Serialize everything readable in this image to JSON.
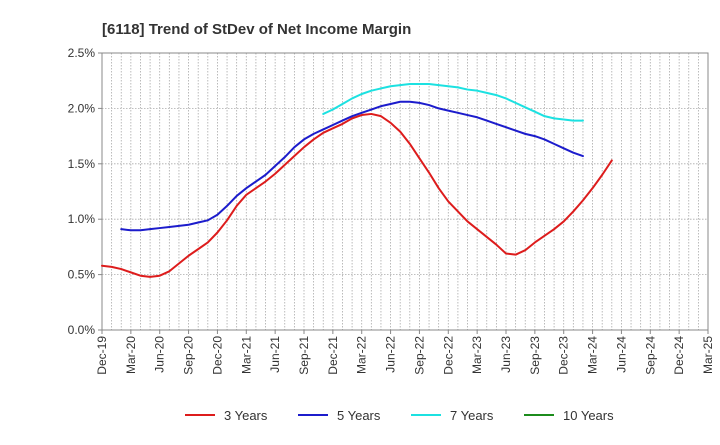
{
  "chart_data": {
    "type": "line",
    "title": "[6118]  Trend of StDev of Net Income Margin",
    "xlabel": "",
    "ylabel": "",
    "x_ticks": [
      "Dec-19",
      "Mar-20",
      "Jun-20",
      "Sep-20",
      "Dec-20",
      "Mar-21",
      "Jun-21",
      "Sep-21",
      "Dec-21",
      "Mar-22",
      "Jun-22",
      "Sep-22",
      "Dec-22",
      "Mar-23",
      "Jun-23",
      "Sep-23",
      "Dec-23",
      "Mar-24",
      "Jun-24",
      "Sep-24",
      "Dec-24",
      "Mar-25"
    ],
    "y_ticks": [
      "0.0%",
      "0.5%",
      "1.0%",
      "1.5%",
      "2.0%",
      "2.5%"
    ],
    "ylim": [
      0,
      2.5
    ],
    "y_unit": "%",
    "grid": true,
    "legend_position": "bottom",
    "series": [
      {
        "name": "3 Years",
        "color": "#dd1c1c",
        "start_index": 0,
        "values": [
          0.58,
          0.57,
          0.55,
          0.52,
          0.49,
          0.48,
          0.49,
          0.53,
          0.6,
          0.67,
          0.73,
          0.79,
          0.88,
          0.99,
          1.12,
          1.22,
          1.28,
          1.34,
          1.41,
          1.49,
          1.57,
          1.65,
          1.72,
          1.78,
          1.82,
          1.86,
          1.91,
          1.94,
          1.95,
          1.93,
          1.87,
          1.79,
          1.68,
          1.55,
          1.42,
          1.28,
          1.16,
          1.07,
          0.98,
          0.91,
          0.84,
          0.77,
          0.69,
          0.68,
          0.72,
          0.79,
          0.85,
          0.91,
          0.98,
          1.07,
          1.17,
          1.28,
          1.4,
          1.53
        ]
      },
      {
        "name": "5 Years",
        "color": "#1c1ccc",
        "start_index": 2,
        "values": [
          0.91,
          0.9,
          0.9,
          0.91,
          0.92,
          0.93,
          0.94,
          0.95,
          0.97,
          0.99,
          1.04,
          1.12,
          1.21,
          1.28,
          1.34,
          1.4,
          1.48,
          1.56,
          1.65,
          1.72,
          1.77,
          1.81,
          1.85,
          1.89,
          1.93,
          1.96,
          1.99,
          2.02,
          2.04,
          2.06,
          2.06,
          2.05,
          2.03,
          2.0,
          1.98,
          1.96,
          1.94,
          1.92,
          1.89,
          1.86,
          1.83,
          1.8,
          1.77,
          1.75,
          1.72,
          1.68,
          1.64,
          1.6,
          1.57
        ]
      },
      {
        "name": "7 Years",
        "color": "#1ce1e1",
        "start_index": 23,
        "values": [
          1.95,
          1.99,
          2.04,
          2.09,
          2.13,
          2.16,
          2.18,
          2.2,
          2.21,
          2.22,
          2.22,
          2.22,
          2.21,
          2.2,
          2.19,
          2.17,
          2.16,
          2.14,
          2.12,
          2.09,
          2.05,
          2.01,
          1.97,
          1.93,
          1.91,
          1.9,
          1.89,
          1.89
        ]
      },
      {
        "name": "10 Years",
        "color": "#1c8c1c",
        "start_index": 0,
        "values": []
      }
    ]
  }
}
